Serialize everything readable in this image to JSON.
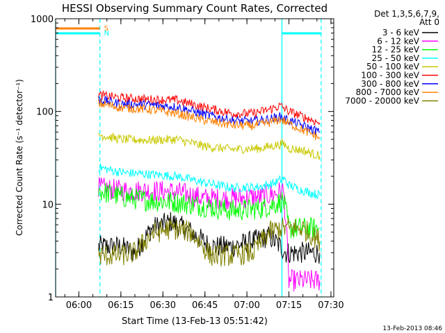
{
  "chart_data": {
    "type": "line",
    "title": "HESSI Observing Summary Count Rates, Corrected",
    "xlabel": "Start Time (13-Feb-13 05:51:42)",
    "ylabel": "Corrected Count Rate (s⁻¹ detector⁻¹)",
    "yscale": "log",
    "ylim": [
      1,
      1000
    ],
    "xlim": [
      "05:51:42",
      "07:31:00"
    ],
    "x_ticks": [
      "06:00",
      "06:15",
      "06:30",
      "06:45",
      "07:00",
      "07:15",
      "07:30"
    ],
    "y_ticks": [
      "1",
      "10",
      "100",
      "1000"
    ],
    "legend_header": [
      "Det 1,3,5,6,7,9,",
      "Att 0"
    ],
    "legend_position": "right",
    "footer": "13-Feb-2013 08:46",
    "flags": [
      {
        "label": "S",
        "color": "#ff8000",
        "start": "05:51:42",
        "end": "06:07:30"
      },
      {
        "label": "N",
        "color": "#00ffff",
        "start": "05:51:42",
        "end": "06:07:30"
      }
    ],
    "night_intervals": [
      {
        "start": "05:51:42",
        "end": "06:07:30"
      },
      {
        "start": "07:12:30",
        "end": "07:26:30"
      }
    ],
    "day_start": "07:12:30",
    "series": [
      {
        "name": "3 - 6 keV",
        "color": "#000000",
        "x": [
          "06:07",
          "06:15",
          "06:20",
          "06:26",
          "06:33",
          "06:40",
          "06:47",
          "06:55",
          "07:02",
          "07:08",
          "07:12",
          "07:14",
          "07:15",
          "07:20",
          "07:26"
        ],
        "y": [
          3.5,
          3.5,
          3,
          5.5,
          6.5,
          5,
          3.5,
          3.5,
          4,
          4.5,
          3.5,
          3,
          3,
          3,
          3
        ]
      },
      {
        "name": "6 - 12 keV",
        "color": "#ff00ff",
        "x": [
          "06:07",
          "06:15",
          "06:25",
          "06:35",
          "06:45",
          "06:55",
          "07:05",
          "07:10",
          "07:13",
          "07:14",
          "07:15",
          "07:20",
          "07:26"
        ],
        "y": [
          15,
          14,
          14,
          13.5,
          11.5,
          11.5,
          12,
          13,
          14,
          6,
          1.5,
          1.5,
          1.5
        ]
      },
      {
        "name": "12 - 25 keV",
        "color": "#00ff00",
        "x": [
          "06:07",
          "06:15",
          "06:25",
          "06:35",
          "06:45",
          "06:55",
          "07:05",
          "07:10",
          "07:13",
          "07:14",
          "07:15",
          "07:20",
          "07:26"
        ],
        "y": [
          14,
          12,
          11,
          10.5,
          9.5,
          8.5,
          9,
          10,
          11,
          8,
          5.5,
          5.5,
          5.5
        ]
      },
      {
        "name": "25 - 50 keV",
        "color": "#00ffff",
        "x": [
          "06:07",
          "06:15",
          "06:25",
          "06:35",
          "06:45",
          "06:55",
          "07:05",
          "07:10",
          "07:13",
          "07:15",
          "07:20",
          "07:26"
        ],
        "y": [
          25,
          22,
          21,
          20,
          17,
          15,
          15.5,
          17,
          19,
          16,
          14,
          12.5
        ]
      },
      {
        "name": "50 - 100 keV",
        "color": "#c8c800",
        "x": [
          "06:07",
          "06:15",
          "06:25",
          "06:35",
          "06:45",
          "06:55",
          "07:05",
          "07:10",
          "07:13",
          "07:15",
          "07:20",
          "07:26"
        ],
        "y": [
          56,
          50,
          49,
          50,
          42,
          39,
          40,
          43,
          45,
          40,
          38,
          33
        ]
      },
      {
        "name": "100 - 300 keV",
        "color": "#ff0000",
        "x": [
          "06:07",
          "06:15",
          "06:25",
          "06:35",
          "06:45",
          "06:55",
          "07:02",
          "07:08",
          "07:12",
          "07:15",
          "07:20",
          "07:26"
        ],
        "y": [
          150,
          140,
          135,
          132,
          110,
          95,
          95,
          105,
          115,
          100,
          88,
          75
        ]
      },
      {
        "name": "300 - 800 keV",
        "color": "#0000ff",
        "x": [
          "06:07",
          "06:15",
          "06:25",
          "06:35",
          "06:45",
          "06:55",
          "07:02",
          "07:08",
          "07:12",
          "07:15",
          "07:20",
          "07:26"
        ],
        "y": [
          135,
          120,
          118,
          112,
          93,
          80,
          78,
          83,
          88,
          80,
          70,
          60
        ]
      },
      {
        "name": "800 - 7000 keV",
        "color": "#ff8000",
        "x": [
          "06:07",
          "06:15",
          "06:25",
          "06:35",
          "06:45",
          "06:55",
          "07:02",
          "07:08",
          "07:12",
          "07:15",
          "07:20",
          "07:26"
        ],
        "y": [
          122,
          110,
          105,
          95,
          80,
          71,
          70,
          76,
          82,
          74,
          63,
          52
        ]
      },
      {
        "name": "7000 - 20000 keV",
        "color": "#808000",
        "x": [
          "06:07",
          "06:15",
          "06:20",
          "06:26",
          "06:33",
          "06:40",
          "06:47",
          "06:55",
          "07:02",
          "07:08",
          "07:12",
          "07:14",
          "07:15",
          "07:20",
          "07:26"
        ],
        "y": [
          2.8,
          2.8,
          3,
          4.8,
          5.5,
          5,
          2.8,
          2.8,
          3,
          5,
          5.5,
          5.5,
          5.5,
          5.5,
          4
        ]
      }
    ]
  }
}
